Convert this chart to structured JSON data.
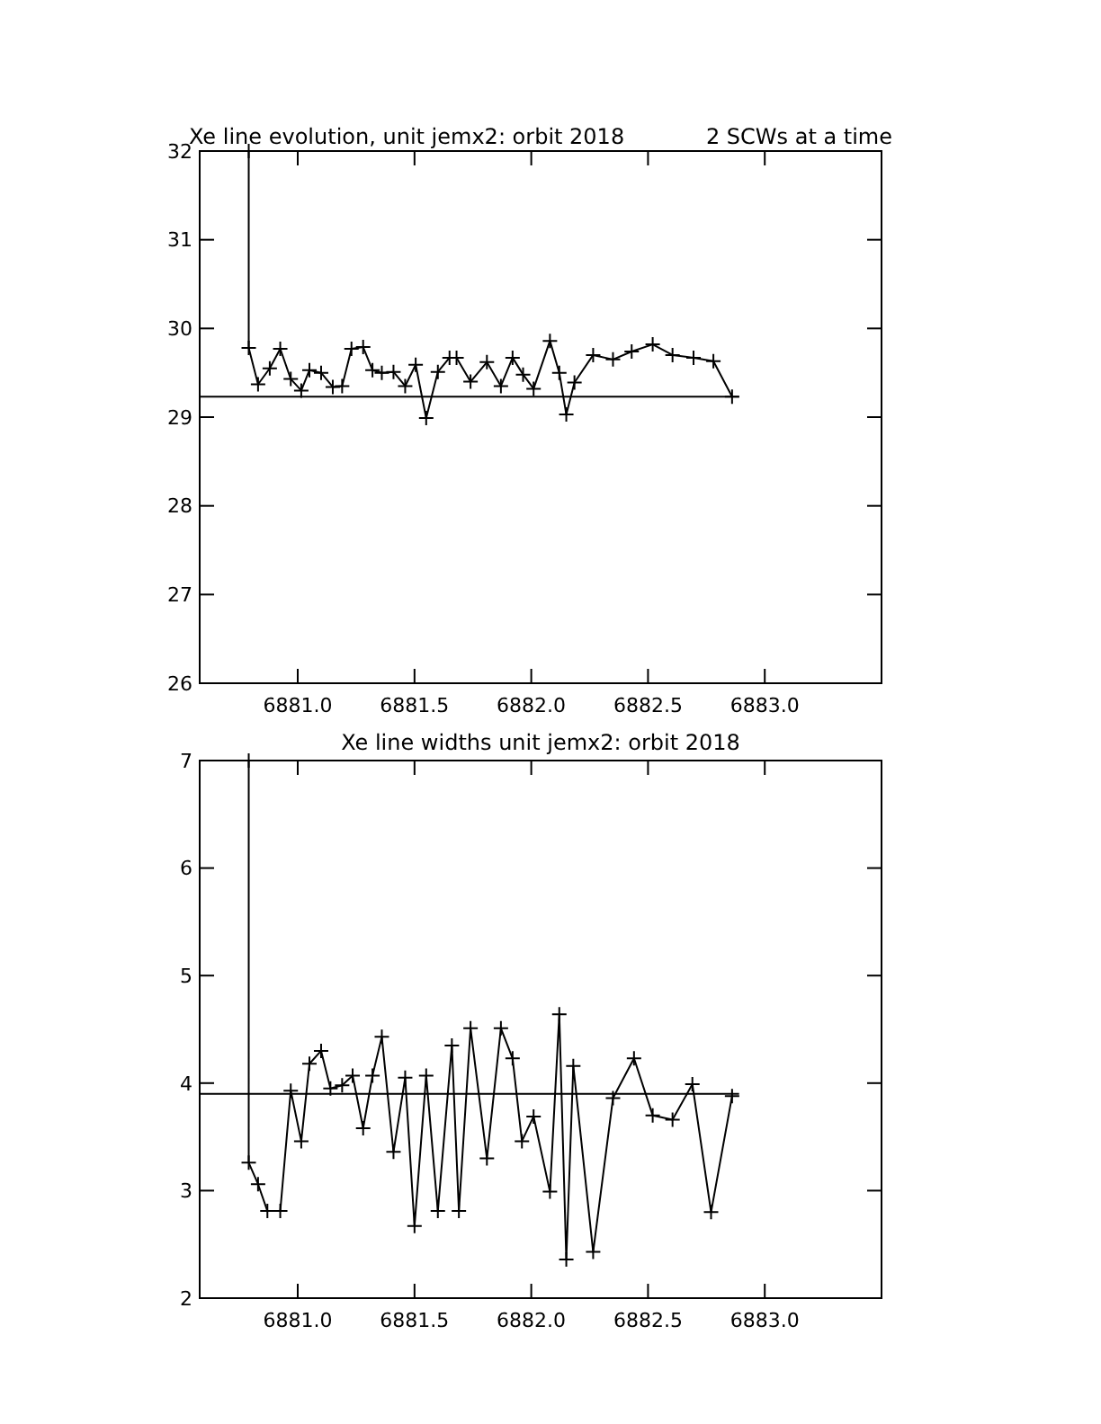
{
  "chart_data": [
    {
      "type": "line",
      "title": "Xe line evolution, unit jemx2: orbit 2018",
      "subtitle": "2 SCWs at a time",
      "xlim": [
        6880.58,
        6883.5
      ],
      "ylim": [
        26,
        32
      ],
      "xticks": [
        {
          "value": 6881,
          "label": "6881.0"
        },
        {
          "value": 6881.5,
          "label": "6881.5"
        },
        {
          "value": 6882,
          "label": "6882.0"
        },
        {
          "value": 6882.5,
          "label": "6882.5"
        },
        {
          "value": 6883,
          "label": "6883.0"
        }
      ],
      "yticks": [
        26,
        27,
        28,
        29,
        30,
        31,
        32
      ],
      "grid": false,
      "series": [
        {
          "color": "#000000",
          "marker": "cross",
          "x": [
            6880.79,
            6880.79,
            6880.83,
            6880.88,
            6880.925,
            6880.97,
            6881.015,
            6881.05,
            6881.1,
            6881.15,
            6881.19,
            6881.23,
            6881.28,
            6881.32,
            6881.36,
            6881.41,
            6881.46,
            6881.505,
            6881.55,
            6881.6,
            6881.65,
            6881.68,
            6881.74,
            6881.81,
            6881.87,
            6881.92,
            6881.965,
            6882.01,
            6882.08,
            6882.12,
            6882.15,
            6882.185,
            6882.265,
            6882.35,
            6882.43,
            6882.52,
            6882.605,
            6882.695,
            6882.78,
            6882.86
          ],
          "values": [
            32,
            29.78,
            29.37,
            29.55,
            29.77,
            29.43,
            29.3,
            29.53,
            29.5,
            29.34,
            29.35,
            29.77,
            29.79,
            29.53,
            29.5,
            29.51,
            29.35,
            29.59,
            28.99,
            29.51,
            29.67,
            29.67,
            29.4,
            29.62,
            29.35,
            29.67,
            29.48,
            29.32,
            29.86,
            29.5,
            29.03,
            29.39,
            29.7,
            29.65,
            29.74,
            29.82,
            29.7,
            29.67,
            29.63,
            29.23
          ]
        },
        {
          "color": "#000000",
          "marker": "none",
          "x": [
            6880.58,
            6882.89
          ],
          "values": [
            29.23,
            29.23
          ]
        }
      ]
    },
    {
      "type": "line",
      "title": "Xe line widths unit jemx2: orbit 2018",
      "xlim": [
        6880.58,
        6883.5
      ],
      "ylim": [
        2,
        7
      ],
      "xticks": [
        {
          "value": 6881,
          "label": "6881.0"
        },
        {
          "value": 6881.5,
          "label": "6881.5"
        },
        {
          "value": 6882,
          "label": "6882.0"
        },
        {
          "value": 6882.5,
          "label": "6882.5"
        },
        {
          "value": 6883,
          "label": "6883.0"
        }
      ],
      "yticks": [
        2,
        3,
        4,
        5,
        6,
        7
      ],
      "grid": false,
      "series": [
        {
          "color": "#000000",
          "marker": "cross",
          "x": [
            6880.79,
            6880.79,
            6880.83,
            6880.87,
            6880.925,
            6880.97,
            6881.015,
            6881.05,
            6881.1,
            6881.14,
            6881.19,
            6881.235,
            6881.28,
            6881.32,
            6881.36,
            6881.41,
            6881.46,
            6881.5,
            6881.55,
            6881.6,
            6881.66,
            6881.69,
            6881.74,
            6881.81,
            6881.87,
            6881.92,
            6881.96,
            6882.01,
            6882.08,
            6882.12,
            6882.15,
            6882.18,
            6882.265,
            6882.35,
            6882.44,
            6882.52,
            6882.605,
            6882.69,
            6882.77,
            6882.86
          ],
          "values": [
            7,
            3.26,
            3.06,
            2.81,
            2.81,
            3.93,
            3.46,
            4.18,
            4.3,
            3.95,
            3.98,
            4.07,
            3.58,
            4.07,
            4.43,
            3.36,
            4.05,
            2.67,
            4.07,
            2.81,
            4.35,
            2.81,
            4.51,
            3.3,
            4.51,
            4.23,
            3.46,
            3.69,
            2.99,
            4.64,
            2.36,
            4.16,
            2.43,
            3.86,
            4.23,
            3.7,
            3.66,
            3.99,
            2.8,
            3.88
          ]
        },
        {
          "color": "#000000",
          "marker": "none",
          "x": [
            6880.58,
            6882.89
          ],
          "values": [
            3.9,
            3.9
          ]
        }
      ]
    }
  ]
}
